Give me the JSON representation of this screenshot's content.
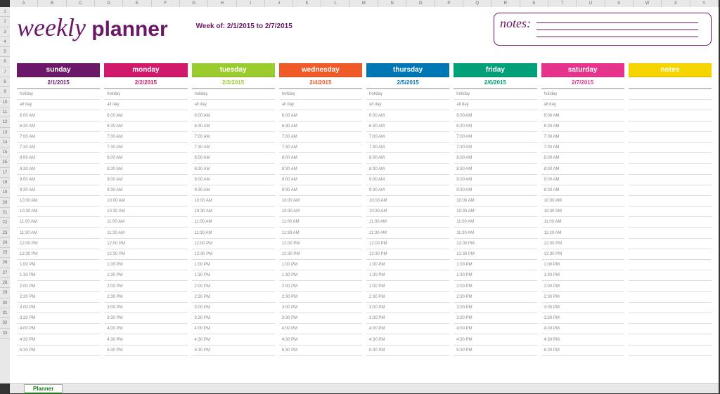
{
  "columnHeaders": [
    "A",
    "B",
    "C",
    "D",
    "E",
    "F",
    "G",
    "H",
    "I",
    "J",
    "K",
    "L",
    "M",
    "N",
    "O",
    "P",
    "Q",
    "R",
    "S",
    "T",
    "U",
    "V",
    "W",
    "X",
    "Y"
  ],
  "rowNumbers": [
    "1",
    "2",
    "3",
    "4",
    "5",
    "6",
    "7",
    "8",
    "9",
    "10",
    "11",
    "12",
    "13",
    "14",
    "15",
    "16",
    "17",
    "18",
    "19",
    "20",
    "21",
    "22",
    "23",
    "24",
    "25",
    "26",
    "27",
    "28",
    "29",
    "30",
    "31",
    "32",
    "33"
  ],
  "title_script": "weekly",
  "title_bold": " planner",
  "weekof": "Week of: 2/1/2015 to 2/7/2015",
  "notes_label": "notes:",
  "days": [
    {
      "name": "sunday",
      "date": "2/1/2015",
      "color": "#6b1868"
    },
    {
      "name": "monday",
      "date": "2/2/2015",
      "color": "#d11a6b"
    },
    {
      "name": "tuesday",
      "date": "2/3/2015",
      "color": "#9acc2e"
    },
    {
      "name": "wednesday",
      "date": "2/4/2015",
      "color": "#f05a28"
    },
    {
      "name": "thursday",
      "date": "2/5/2015",
      "color": "#0077b5"
    },
    {
      "name": "friday",
      "date": "2/6/2015",
      "color": "#00a078"
    },
    {
      "name": "saturday",
      "date": "2/7/2015",
      "color": "#e6348c"
    }
  ],
  "notes_col": {
    "name": "notes",
    "color": "#f5d400"
  },
  "timeslots": [
    "holiday",
    "all day",
    "6:00 AM",
    "6:30 AM",
    "7:00 AM",
    "7:30 AM",
    "8:00 AM",
    "8:30 AM",
    "9:00 AM",
    "9:30 AM",
    "10:00 AM",
    "10:30 AM",
    "11:00 AM",
    "11:30 AM",
    "12:00 PM",
    "12:30 PM",
    "1:00 PM",
    "1:30 PM",
    "2:00 PM",
    "2:30 PM",
    "3:00 PM",
    "3:30 PM",
    "4:00 PM",
    "4:30 PM",
    "5:30 PM"
  ],
  "tab_name": "Planner"
}
